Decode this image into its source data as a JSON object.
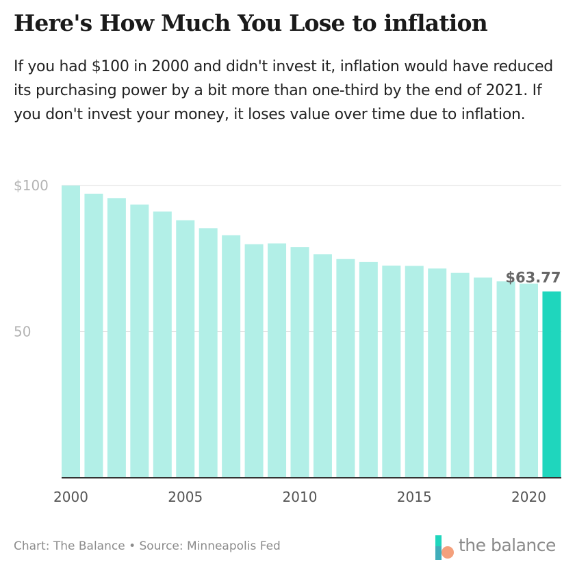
{
  "header": {
    "title": "Here's How Much You Lose to inflation",
    "subtitle": "If you had $100 in 2000 and didn't invest it, inflation would have reduced its purchasing power by a bit more than one-third by the end of 2021. If you don't invest your money, it loses value over time due to inflation."
  },
  "chart_data": {
    "type": "bar",
    "title": "Here's How Much You Lose to inflation",
    "xlabel": "",
    "ylabel": "",
    "categories": [
      "2000",
      "2001",
      "2002",
      "2003",
      "2004",
      "2005",
      "2006",
      "2007",
      "2008",
      "2009",
      "2010",
      "2011",
      "2012",
      "2013",
      "2014",
      "2015",
      "2016",
      "2017",
      "2018",
      "2019",
      "2020",
      "2021"
    ],
    "values": [
      100,
      97.2,
      95.7,
      93.5,
      91.1,
      88.1,
      85.4,
      83.0,
      79.9,
      80.2,
      78.9,
      76.5,
      74.9,
      73.8,
      72.6,
      72.5,
      71.6,
      70.1,
      68.5,
      67.2,
      66.4,
      63.77
    ],
    "ylim": [
      0,
      100
    ],
    "yticks": [
      {
        "value": 100,
        "label": "$100"
      },
      {
        "value": 50,
        "label": "50"
      }
    ],
    "xticks": [
      "2000",
      "2005",
      "2010",
      "2015",
      "2020"
    ],
    "highlight_label": "$63.77",
    "grid": true,
    "colors": {
      "bar": "#b2efe7",
      "highlight": "#1fd6bd",
      "grid": "#dcdcdc",
      "axis": "#333333",
      "tick_label": "#b3b3b3",
      "x_tick_label": "#555555",
      "annotation": "#666666"
    }
  },
  "footer": {
    "credit": "Chart: The Balance • Source: Minneapolis Fed"
  },
  "logo": {
    "text": "the balance",
    "icon": "the-balance-logo-icon",
    "colors": [
      "#1fd6bd",
      "#f4a07c",
      "#5b8db8"
    ]
  }
}
